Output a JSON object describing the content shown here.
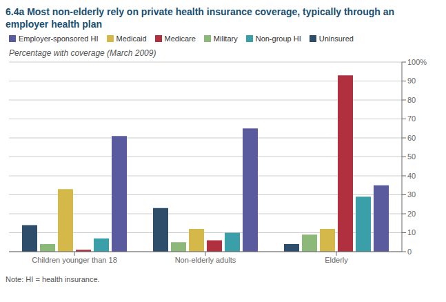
{
  "chart_data": {
    "type": "bar",
    "title": "6.4a Most non-elderly rely on private health insurance coverage, typically through an employer health plan",
    "subtitle": "Percentage with coverage (March 2009)",
    "annotations": [
      "Note: HI = health insurance."
    ],
    "categories": [
      "Children younger than 18",
      "Non-elderly adults",
      "Elderly"
    ],
    "series": [
      {
        "name": "Uninsured",
        "color": "#2e4d6b",
        "values": [
          14,
          23,
          4
        ]
      },
      {
        "name": "Military",
        "color": "#8cb87a",
        "values": [
          4,
          5,
          9
        ]
      },
      {
        "name": "Medicaid",
        "color": "#d4b84a",
        "values": [
          33,
          12,
          12
        ]
      },
      {
        "name": "Medicare",
        "color": "#b03040",
        "values": [
          1,
          6,
          93
        ]
      },
      {
        "name": "Non-group HI",
        "color": "#3a9fa8",
        "values": [
          7,
          10,
          29
        ]
      },
      {
        "name": "Employer-sponsored HI",
        "color": "#5a5b9f",
        "values": [
          61,
          65,
          35
        ]
      }
    ],
    "ylim": [
      0,
      100
    ],
    "yticks": [
      0,
      10,
      20,
      30,
      40,
      50,
      60,
      70,
      80,
      90,
      {
        "value": 100,
        "label": "100%"
      }
    ],
    "grid": true,
    "legend": "top"
  }
}
